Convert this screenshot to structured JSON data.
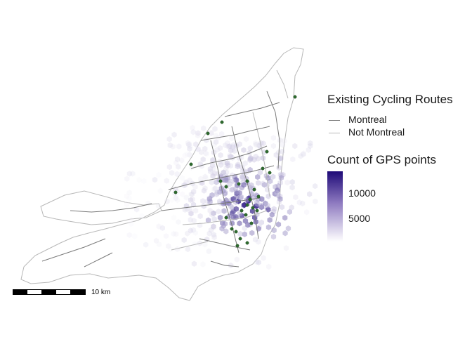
{
  "legend_routes": {
    "title": "Existing Cycling Routes",
    "items": [
      {
        "label": "Montreal",
        "color": "#7a7a7a"
      },
      {
        "label": "Not Montreal",
        "color": "#b8b8b8"
      }
    ]
  },
  "legend_count": {
    "title": "Count of GPS points",
    "ticks": [
      10000,
      5000
    ],
    "tick_labels": [
      "10000",
      "5000"
    ],
    "color_low": "#ffffff",
    "color_high": "#1e0a78"
  },
  "scale_bar": {
    "label": "10 km"
  },
  "colors": {
    "route_montreal": "#7a7a7a",
    "route_other": "#b8b8b8",
    "points": "#2e6b2e"
  }
}
